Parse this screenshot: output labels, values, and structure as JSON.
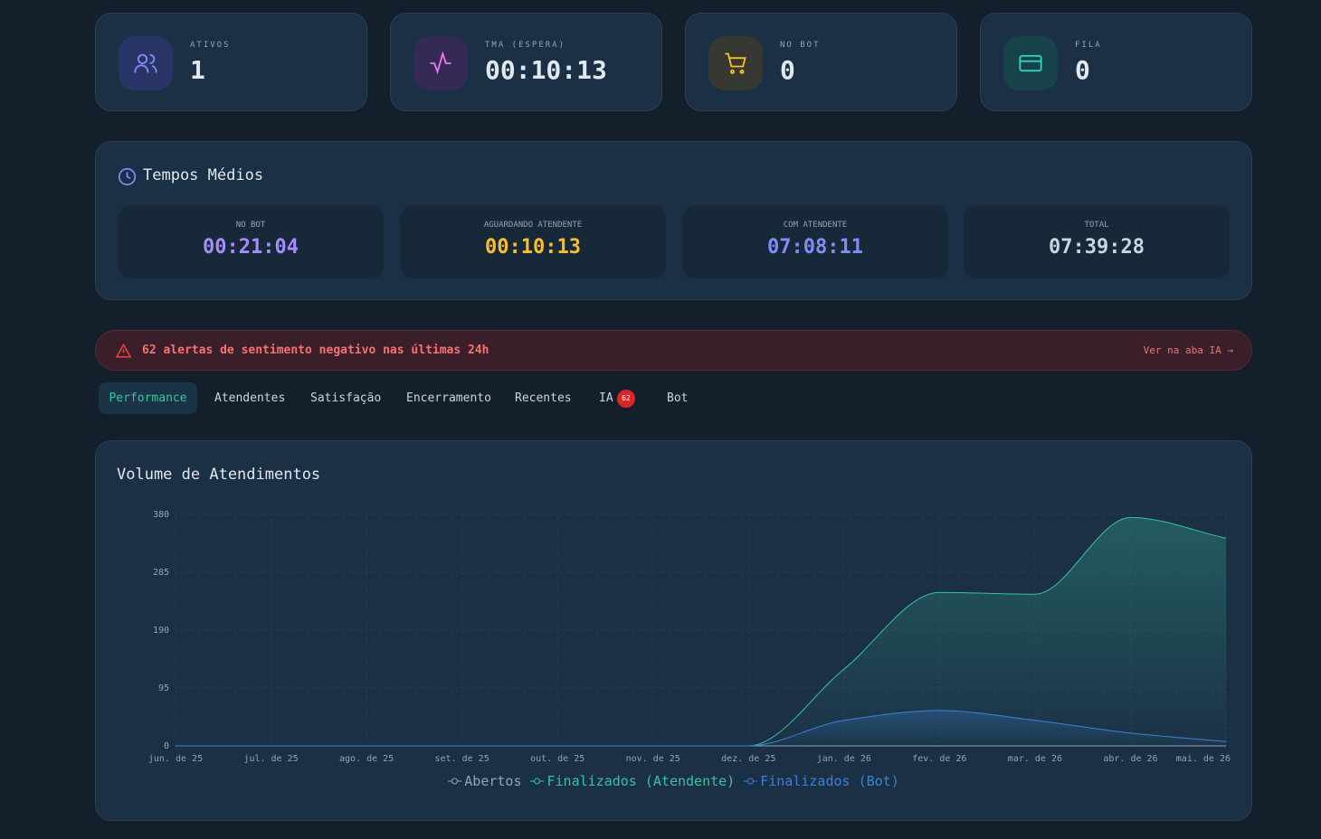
{
  "stats": [
    {
      "label": "ATIVOS",
      "value": "1"
    },
    {
      "label": "TMA (ESPERA)",
      "value": "00:10:13"
    },
    {
      "label": "NO BOT",
      "value": "0"
    },
    {
      "label": "FILA",
      "value": "0"
    }
  ],
  "tempos": {
    "title": "Tempos Médios",
    "items": [
      {
        "label": "NO BOT",
        "value": "00:21:04"
      },
      {
        "label": "AGUARDANDO ATENDENTE",
        "value": "00:10:13"
      },
      {
        "label": "COM ATENDENTE",
        "value": "07:08:11"
      },
      {
        "label": "TOTAL",
        "value": "07:39:28"
      }
    ]
  },
  "alert": {
    "text": "62 alertas de sentimento negativo nas últimas 24h",
    "link": "Ver na aba IA →"
  },
  "tabs": [
    {
      "label": "Performance"
    },
    {
      "label": "Atendentes"
    },
    {
      "label": "Satisfação"
    },
    {
      "label": "Encerramento"
    },
    {
      "label": "Recentes"
    },
    {
      "label": "IA",
      "badge": "62"
    },
    {
      "label": "Bot"
    }
  ],
  "chart_data": {
    "type": "area",
    "title": "Volume de Atendimentos",
    "categories": [
      "jun. de 25",
      "jul. de 25",
      "ago. de 25",
      "set. de 25",
      "out. de 25",
      "nov. de 25",
      "dez. de 25",
      "jan. de 26",
      "fev. de 26",
      "mar. de 26",
      "abr. de 26",
      "mai. de 26"
    ],
    "series": [
      {
        "name": "Abertos",
        "color": "#94a3b8",
        "values": [
          0,
          0,
          0,
          0,
          0,
          0,
          0,
          0,
          0,
          0,
          0,
          0
        ]
      },
      {
        "name": "Finalizados (Atendente)",
        "color": "#34c4a0",
        "values": [
          0,
          0,
          0,
          0,
          0,
          0,
          0,
          126,
          252,
          249,
          375,
          341
        ]
      },
      {
        "name": "Finalizados (Bot)",
        "color": "#3b82d6",
        "values": [
          0,
          0,
          0,
          0,
          0,
          0,
          0,
          42,
          58,
          42,
          21,
          7
        ]
      }
    ],
    "ylim": [
      0,
      380
    ],
    "yticks": [
      0,
      95,
      190,
      285,
      380
    ],
    "grid": true,
    "legend": "bottom"
  }
}
